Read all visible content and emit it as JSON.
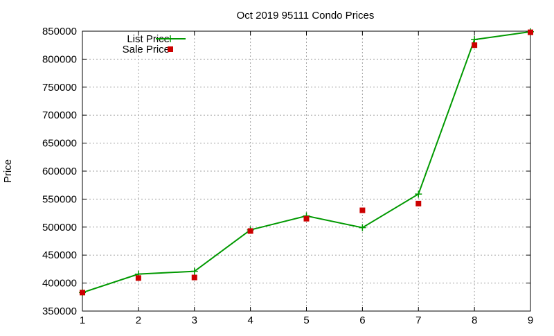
{
  "chart_data": {
    "type": "line",
    "title": "Oct 2019 95111 Condo Prices",
    "xlabel": "",
    "ylabel": "Price",
    "xlim": [
      1,
      9
    ],
    "ylim": [
      350000,
      850000
    ],
    "x_ticks": [
      1,
      2,
      3,
      4,
      5,
      6,
      7,
      8,
      9
    ],
    "y_ticks": [
      350000,
      400000,
      450000,
      500000,
      550000,
      600000,
      650000,
      700000,
      750000,
      800000,
      850000
    ],
    "grid": true,
    "legend_position": "top-left",
    "series": [
      {
        "name": "List Price",
        "style": "line+cross",
        "color": "#009900",
        "x": [
          1,
          2,
          3,
          4,
          5,
          6,
          7,
          8,
          9
        ],
        "y": [
          383000,
          416000,
          421000,
          495000,
          520000,
          499000,
          559000,
          835000,
          849000
        ]
      },
      {
        "name": "Sale Price",
        "style": "square-points",
        "color": "#cc0000",
        "x": [
          1,
          2,
          3,
          4,
          5,
          6,
          7,
          8,
          9
        ],
        "y": [
          383000,
          409000,
          410000,
          493000,
          515000,
          530000,
          542000,
          825000,
          848000
        ]
      }
    ]
  }
}
